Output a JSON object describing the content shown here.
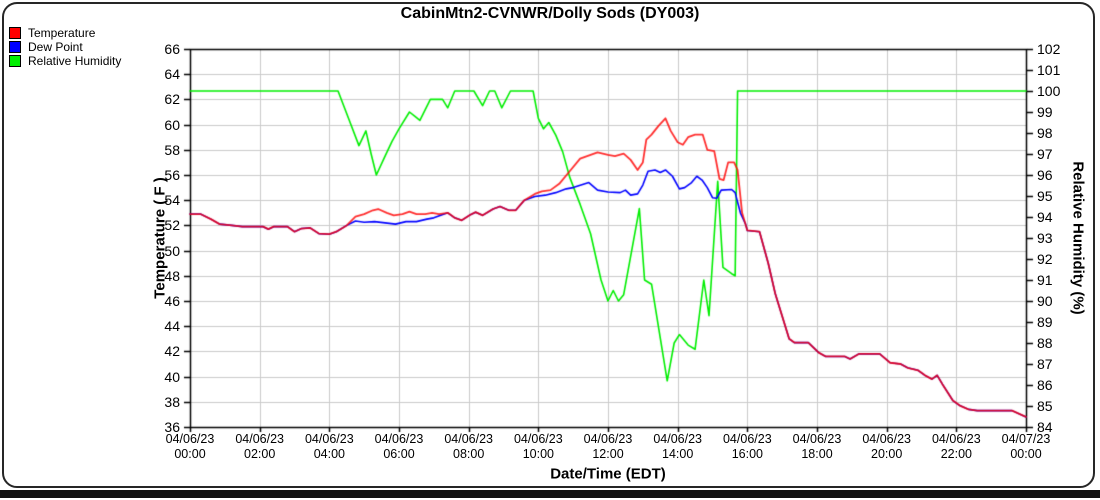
{
  "chart": {
    "title": "CabinMtn2-CVNWR/Dolly Sods (DY003)",
    "x_axis_title": "Date/Time (EDT)",
    "left_axis_title": "Temperature ( F )",
    "right_axis_title": "Relative Humidity (%)",
    "legend": [
      {
        "label": "Temperature",
        "color": "#ff0000"
      },
      {
        "label": "Dew Point",
        "color": "#0000ff"
      },
      {
        "label": "Relative Humidity",
        "color": "#00ee00"
      }
    ]
  },
  "chart_data": {
    "type": "line",
    "title": "CabinMtn2-CVNWR/Dolly Sods (DY003)",
    "xlabel": "Date/Time (EDT)",
    "grid": true,
    "legend_position": "top-left",
    "x_range_hours": [
      0,
      24
    ],
    "x_ticks": [
      {
        "date": "04/06/23",
        "time": "00:00"
      },
      {
        "date": "04/06/23",
        "time": "02:00"
      },
      {
        "date": "04/06/23",
        "time": "04:00"
      },
      {
        "date": "04/06/23",
        "time": "06:00"
      },
      {
        "date": "04/06/23",
        "time": "08:00"
      },
      {
        "date": "04/06/23",
        "time": "10:00"
      },
      {
        "date": "04/06/23",
        "time": "12:00"
      },
      {
        "date": "04/06/23",
        "time": "14:00"
      },
      {
        "date": "04/06/23",
        "time": "16:00"
      },
      {
        "date": "04/06/23",
        "time": "18:00"
      },
      {
        "date": "04/06/23",
        "time": "20:00"
      },
      {
        "date": "04/06/23",
        "time": "22:00"
      },
      {
        "date": "04/07/23",
        "time": "00:00"
      }
    ],
    "left_axis": {
      "label": "Temperature ( F )",
      "range": [
        36,
        66
      ],
      "tick_step": 2
    },
    "right_axis": {
      "label": "Relative Humidity (%)",
      "range": [
        84,
        102
      ],
      "tick_step": 1
    },
    "colors": {
      "grid": "#cacaca",
      "axis": "#000000"
    },
    "series": [
      {
        "name": "Relative Humidity",
        "axis": "right",
        "color": "#00ee00",
        "points": [
          [
            0,
            100
          ],
          [
            4.25,
            100
          ],
          [
            4.55,
            98.7
          ],
          [
            4.85,
            97.4
          ],
          [
            5.05,
            98.1
          ],
          [
            5.2,
            97.0
          ],
          [
            5.35,
            96.0
          ],
          [
            5.6,
            96.9
          ],
          [
            5.8,
            97.6
          ],
          [
            6.0,
            98.2
          ],
          [
            6.3,
            99.0
          ],
          [
            6.45,
            98.8
          ],
          [
            6.6,
            98.6
          ],
          [
            6.9,
            99.6
          ],
          [
            7.25,
            99.6
          ],
          [
            7.4,
            99.2
          ],
          [
            7.6,
            100
          ],
          [
            8.15,
            100
          ],
          [
            8.4,
            99.3
          ],
          [
            8.6,
            100
          ],
          [
            8.75,
            100
          ],
          [
            8.95,
            99.2
          ],
          [
            9.2,
            100
          ],
          [
            9.85,
            100
          ],
          [
            10.0,
            98.7
          ],
          [
            10.15,
            98.2
          ],
          [
            10.3,
            98.5
          ],
          [
            10.5,
            97.9
          ],
          [
            10.7,
            97.1
          ],
          [
            10.9,
            95.9
          ],
          [
            11.2,
            94.6
          ],
          [
            11.5,
            93.2
          ],
          [
            11.8,
            91.0
          ],
          [
            12.0,
            90.0
          ],
          [
            12.15,
            90.5
          ],
          [
            12.3,
            90.0
          ],
          [
            12.45,
            90.3
          ],
          [
            12.9,
            94.4
          ],
          [
            13.05,
            91.0
          ],
          [
            13.25,
            90.8
          ],
          [
            13.7,
            86.2
          ],
          [
            13.9,
            88.0
          ],
          [
            14.05,
            88.4
          ],
          [
            14.3,
            87.9
          ],
          [
            14.5,
            87.7
          ],
          [
            14.75,
            91.0
          ],
          [
            14.9,
            89.3
          ],
          [
            15.15,
            95.7
          ],
          [
            15.3,
            91.6
          ],
          [
            15.55,
            91.3
          ],
          [
            15.65,
            91.2
          ],
          [
            15.72,
            100
          ],
          [
            24,
            100
          ]
        ]
      },
      {
        "name": "Dew Point",
        "axis": "left",
        "color": "#0000ff",
        "points": [
          [
            0,
            52.9
          ],
          [
            0.3,
            52.9
          ],
          [
            0.6,
            52.5
          ],
          [
            0.85,
            52.1
          ],
          [
            1.2,
            52.0
          ],
          [
            1.5,
            51.9
          ],
          [
            2.1,
            51.9
          ],
          [
            2.25,
            51.7
          ],
          [
            2.4,
            51.9
          ],
          [
            2.8,
            51.9
          ],
          [
            3.0,
            51.5
          ],
          [
            3.2,
            51.75
          ],
          [
            3.45,
            51.8
          ],
          [
            3.7,
            51.35
          ],
          [
            4.0,
            51.3
          ],
          [
            4.2,
            51.5
          ],
          [
            4.5,
            52.0
          ],
          [
            4.75,
            52.35
          ],
          [
            5.0,
            52.25
          ],
          [
            5.3,
            52.3
          ],
          [
            5.6,
            52.2
          ],
          [
            5.9,
            52.1
          ],
          [
            6.2,
            52.3
          ],
          [
            6.5,
            52.3
          ],
          [
            6.8,
            52.5
          ],
          [
            7.0,
            52.6
          ],
          [
            7.3,
            52.9
          ],
          [
            7.4,
            53.0
          ],
          [
            7.6,
            52.6
          ],
          [
            7.8,
            52.4
          ],
          [
            8.05,
            52.85
          ],
          [
            8.2,
            53.05
          ],
          [
            8.4,
            52.8
          ],
          [
            8.7,
            53.3
          ],
          [
            8.9,
            53.5
          ],
          [
            9.15,
            53.2
          ],
          [
            9.35,
            53.2
          ],
          [
            9.6,
            54.0
          ],
          [
            9.9,
            54.3
          ],
          [
            10.2,
            54.4
          ],
          [
            10.5,
            54.6
          ],
          [
            10.8,
            54.9
          ],
          [
            11.0,
            55.0
          ],
          [
            11.45,
            55.4
          ],
          [
            11.7,
            54.8
          ],
          [
            12.0,
            54.65
          ],
          [
            12.35,
            54.6
          ],
          [
            12.5,
            54.8
          ],
          [
            12.65,
            54.4
          ],
          [
            12.85,
            54.5
          ],
          [
            13.0,
            55.2
          ],
          [
            13.15,
            56.3
          ],
          [
            13.35,
            56.4
          ],
          [
            13.5,
            56.2
          ],
          [
            13.65,
            56.4
          ],
          [
            13.85,
            55.9
          ],
          [
            14.05,
            54.9
          ],
          [
            14.2,
            55.0
          ],
          [
            14.4,
            55.4
          ],
          [
            14.55,
            55.9
          ],
          [
            14.7,
            55.6
          ],
          [
            14.85,
            55.0
          ],
          [
            15.0,
            54.2
          ],
          [
            15.12,
            54.15
          ],
          [
            15.25,
            54.8
          ],
          [
            15.55,
            54.85
          ],
          [
            15.65,
            54.6
          ],
          [
            15.8,
            53.0
          ],
          [
            15.95,
            52.1
          ],
          [
            16.0,
            51.6
          ],
          [
            16.35,
            51.5
          ],
          [
            16.6,
            49.0
          ],
          [
            16.8,
            46.6
          ],
          [
            17.0,
            44.8
          ],
          [
            17.2,
            43.0
          ],
          [
            17.35,
            42.7
          ],
          [
            17.75,
            42.7
          ],
          [
            18.05,
            41.9
          ],
          [
            18.25,
            41.6
          ],
          [
            18.8,
            41.6
          ],
          [
            18.95,
            41.4
          ],
          [
            19.2,
            41.8
          ],
          [
            19.8,
            41.8
          ],
          [
            20.1,
            41.1
          ],
          [
            20.4,
            41.0
          ],
          [
            20.6,
            40.7
          ],
          [
            20.9,
            40.5
          ],
          [
            21.1,
            40.1
          ],
          [
            21.3,
            39.8
          ],
          [
            21.45,
            40.1
          ],
          [
            21.6,
            39.4
          ],
          [
            21.9,
            38.1
          ],
          [
            22.1,
            37.7
          ],
          [
            22.35,
            37.4
          ],
          [
            22.6,
            37.3
          ],
          [
            23.6,
            37.3
          ],
          [
            24.0,
            36.8
          ]
        ]
      },
      {
        "name": "Temperature",
        "axis": "left",
        "color": "#ff0000",
        "points": [
          [
            0,
            52.9
          ],
          [
            0.3,
            52.9
          ],
          [
            0.6,
            52.5
          ],
          [
            0.85,
            52.1
          ],
          [
            1.2,
            52.0
          ],
          [
            1.5,
            51.9
          ],
          [
            2.1,
            51.9
          ],
          [
            2.25,
            51.7
          ],
          [
            2.4,
            51.9
          ],
          [
            2.8,
            51.9
          ],
          [
            3.0,
            51.5
          ],
          [
            3.2,
            51.75
          ],
          [
            3.45,
            51.8
          ],
          [
            3.7,
            51.35
          ],
          [
            4.0,
            51.3
          ],
          [
            4.2,
            51.5
          ],
          [
            4.5,
            52.0
          ],
          [
            4.75,
            52.7
          ],
          [
            5.0,
            52.9
          ],
          [
            5.25,
            53.2
          ],
          [
            5.4,
            53.3
          ],
          [
            5.65,
            53.0
          ],
          [
            5.85,
            52.8
          ],
          [
            6.1,
            52.9
          ],
          [
            6.3,
            53.1
          ],
          [
            6.5,
            52.9
          ],
          [
            6.75,
            52.9
          ],
          [
            6.95,
            53.0
          ],
          [
            7.15,
            52.9
          ],
          [
            7.4,
            53.0
          ],
          [
            7.6,
            52.6
          ],
          [
            7.8,
            52.4
          ],
          [
            8.05,
            52.85
          ],
          [
            8.2,
            53.05
          ],
          [
            8.4,
            52.8
          ],
          [
            8.7,
            53.3
          ],
          [
            8.9,
            53.5
          ],
          [
            9.15,
            53.2
          ],
          [
            9.35,
            53.2
          ],
          [
            9.6,
            54.0
          ],
          [
            9.9,
            54.5
          ],
          [
            10.1,
            54.7
          ],
          [
            10.35,
            54.8
          ],
          [
            10.6,
            55.3
          ],
          [
            10.9,
            56.3
          ],
          [
            11.2,
            57.3
          ],
          [
            11.5,
            57.6
          ],
          [
            11.7,
            57.8
          ],
          [
            12.0,
            57.6
          ],
          [
            12.2,
            57.5
          ],
          [
            12.45,
            57.7
          ],
          [
            12.65,
            57.2
          ],
          [
            12.85,
            56.4
          ],
          [
            13.0,
            57.0
          ],
          [
            13.1,
            58.8
          ],
          [
            13.25,
            59.2
          ],
          [
            13.45,
            59.9
          ],
          [
            13.65,
            60.5
          ],
          [
            13.8,
            59.5
          ],
          [
            14.0,
            58.6
          ],
          [
            14.15,
            58.4
          ],
          [
            14.3,
            59.0
          ],
          [
            14.5,
            59.2
          ],
          [
            14.72,
            59.2
          ],
          [
            14.85,
            58.0
          ],
          [
            15.05,
            57.9
          ],
          [
            15.2,
            55.7
          ],
          [
            15.32,
            55.6
          ],
          [
            15.45,
            57.0
          ],
          [
            15.62,
            57.0
          ],
          [
            15.72,
            56.4
          ],
          [
            15.85,
            53.0
          ],
          [
            16.0,
            51.6
          ],
          [
            16.35,
            51.5
          ],
          [
            16.6,
            49.0
          ],
          [
            16.8,
            46.6
          ],
          [
            17.0,
            44.8
          ],
          [
            17.2,
            43.0
          ],
          [
            17.35,
            42.7
          ],
          [
            17.75,
            42.7
          ],
          [
            18.05,
            41.9
          ],
          [
            18.25,
            41.6
          ],
          [
            18.8,
            41.6
          ],
          [
            18.95,
            41.4
          ],
          [
            19.2,
            41.8
          ],
          [
            19.8,
            41.8
          ],
          [
            20.1,
            41.1
          ],
          [
            20.4,
            41.0
          ],
          [
            20.6,
            40.7
          ],
          [
            20.9,
            40.5
          ],
          [
            21.1,
            40.1
          ],
          [
            21.3,
            39.8
          ],
          [
            21.45,
            40.1
          ],
          [
            21.6,
            39.4
          ],
          [
            21.9,
            38.1
          ],
          [
            22.1,
            37.7
          ],
          [
            22.35,
            37.4
          ],
          [
            22.6,
            37.3
          ],
          [
            23.6,
            37.3
          ],
          [
            24.0,
            36.8
          ]
        ]
      }
    ]
  }
}
